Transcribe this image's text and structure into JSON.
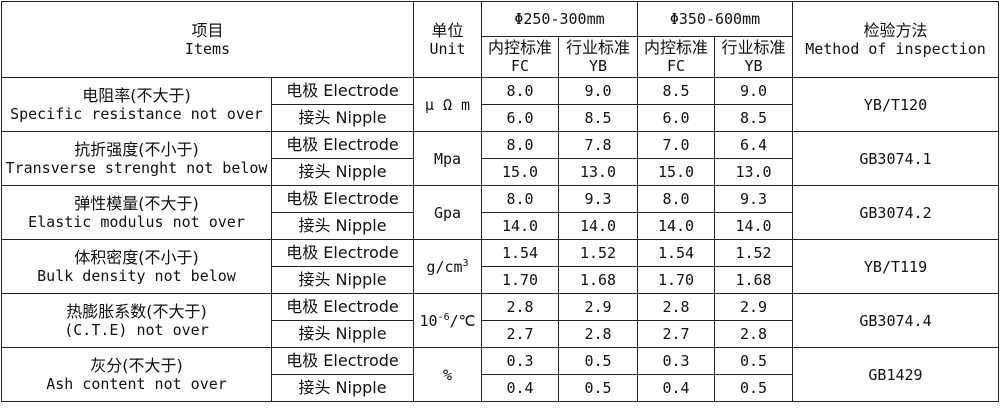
{
  "header": {
    "items_zh": "项目",
    "items_en": "Items",
    "unit_zh": "单位",
    "unit_en": "Unit",
    "range1": "Φ250-300mm",
    "range2": "Φ350-600mm",
    "fc_zh": "内控标准",
    "fc_en": "FC",
    "yb_zh": "行业标准",
    "yb_en": "YB",
    "method_zh": "检验方法",
    "method_en": "Method of inspection"
  },
  "rows": [
    {
      "name_zh": "电阻率(不大于)",
      "name_en": "Specific resistance not over",
      "unit": "μ Ω m",
      "method": "YB/T120",
      "electrode": {
        "label": "电极 Electrode",
        "fc1": "8.0",
        "yb1": "9.0",
        "fc2": "8.5",
        "yb2": "9.0"
      },
      "nipple": {
        "label": "接头 Nipple",
        "fc1": "6.0",
        "yb1": "8.5",
        "fc2": "6.0",
        "yb2": "8.5"
      }
    },
    {
      "name_zh": "抗折强度(不小于)",
      "name_en": "Transverse strenght not below",
      "unit": "Mpa",
      "method": "GB3074.1",
      "electrode": {
        "label": "电极 Electrode",
        "fc1": "8.0",
        "yb1": "7.8",
        "fc2": "7.0",
        "yb2": "6.4"
      },
      "nipple": {
        "label": "接头 Nipple",
        "fc1": "15.0",
        "yb1": "13.0",
        "fc2": "15.0",
        "yb2": "13.0"
      }
    },
    {
      "name_zh": "弹性模量(不大于)",
      "name_en": "Elastic modulus not over",
      "unit": "Gpa",
      "method": "GB3074.2",
      "electrode": {
        "label": "电极 Electrode",
        "fc1": "8.0",
        "yb1": "9.3",
        "fc2": "8.0",
        "yb2": "9.3"
      },
      "nipple": {
        "label": "接头 Nipple",
        "fc1": "14.0",
        "yb1": "14.0",
        "fc2": "14.0",
        "yb2": "14.0"
      }
    },
    {
      "name_zh": "体积密度(不小于)",
      "name_en": "Bulk density not below",
      "unit_base": "g/cm",
      "unit_sup": "3",
      "method": "YB/T119",
      "electrode": {
        "label": "电极 Electrode",
        "fc1": "1.54",
        "yb1": "1.52",
        "fc2": "1.54",
        "yb2": "1.52"
      },
      "nipple": {
        "label": "接头 Nipple",
        "fc1": "1.70",
        "yb1": "1.68",
        "fc2": "1.70",
        "yb2": "1.68"
      }
    },
    {
      "name_zh": "热膨胀系数(不大于)",
      "name_en": "(C.T.E) not over",
      "unit_base": "10",
      "unit_sup": "-6",
      "unit_tail": "/℃",
      "method": "GB3074.4",
      "electrode": {
        "label": "电极 Electrode",
        "fc1": "2.8",
        "yb1": "2.9",
        "fc2": "2.8",
        "yb2": "2.9"
      },
      "nipple": {
        "label": "接头 Nipple",
        "fc1": "2.7",
        "yb1": "2.8",
        "fc2": "2.7",
        "yb2": "2.8"
      }
    },
    {
      "name_zh": "灰分(不大于)",
      "name_en": "Ash content not over",
      "unit": "%",
      "method": "GB1429",
      "electrode": {
        "label": "电极 Electrode",
        "fc1": "0.3",
        "yb1": "0.5",
        "fc2": "0.3",
        "yb2": "0.5"
      },
      "nipple": {
        "label": "接头 Nipple",
        "fc1": "0.4",
        "yb1": "0.5",
        "fc2": "0.4",
        "yb2": "0.5"
      }
    }
  ]
}
